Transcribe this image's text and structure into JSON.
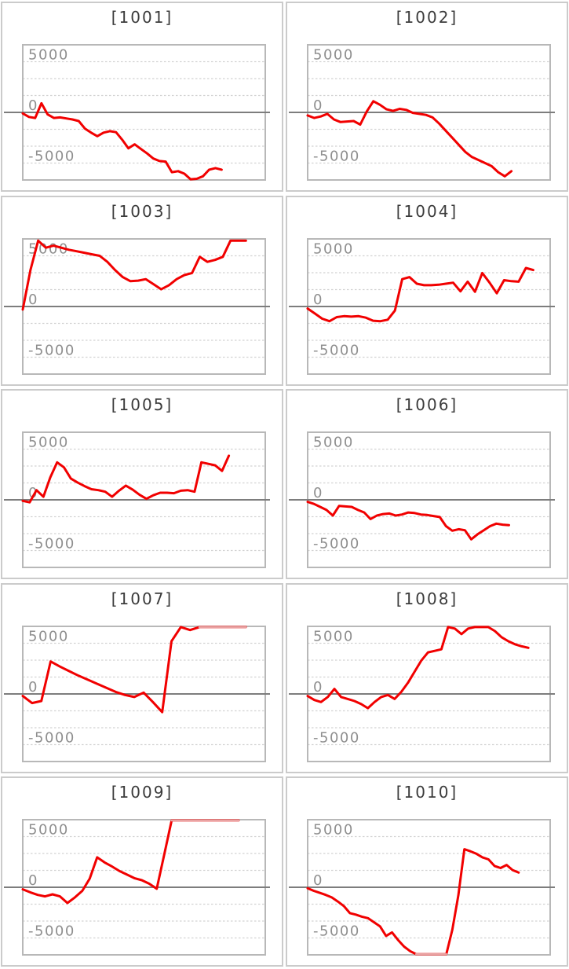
{
  "colors": {
    "background": "#ffffff",
    "line": "#f10000",
    "line_clipped": "#e9a2a2",
    "grid_dashed": "#d2d2d2",
    "zero_line": "#7d7d7d",
    "plot_border": "#b8b8b8",
    "panel_border": "#cbcbcb",
    "tick_label": "#8f8f8f",
    "title": "#3c3c3c"
  },
  "chart_data": {
    "type": "line",
    "legend": "none",
    "grid": "dashed horizontal lines every 1667 units, solid dark line at 0",
    "ylim": [
      -6667,
      6667
    ],
    "y_ticks": [
      5000,
      0,
      -5000
    ],
    "y_tick_labels": [
      "5000",
      "0",
      "-5000"
    ],
    "charts": [
      {
        "title": "[1001]",
        "x_end": 0.82,
        "values": [
          -100,
          -450,
          -550,
          900,
          -200,
          -550,
          -500,
          -600,
          -700,
          -850,
          -1600,
          -2000,
          -2350,
          -2000,
          -1850,
          -1950,
          -2700,
          -3550,
          -3150,
          -3600,
          -4050,
          -4550,
          -4800,
          -4850,
          -5900,
          -5800,
          -6050,
          -6650,
          -6550,
          -6300,
          -5650,
          -5500,
          -5650
        ]
      },
      {
        "title": "[1002]",
        "x_end": 0.84,
        "values": [
          -300,
          -550,
          -400,
          -150,
          -700,
          -950,
          -900,
          -850,
          -1200,
          100,
          1100,
          750,
          300,
          150,
          350,
          250,
          -50,
          -150,
          -250,
          -500,
          -1100,
          -1800,
          -2500,
          -3200,
          -3900,
          -4400,
          -4700,
          -5000,
          -5300,
          -5900,
          -6300,
          -5800
        ]
      },
      {
        "title": "[1003]",
        "x_end": 0.92,
        "values": [
          -300,
          3600,
          6500,
          5800,
          6000,
          5800,
          5600,
          5450,
          5300,
          5150,
          5000,
          4400,
          3600,
          2900,
          2500,
          2550,
          2700,
          2200,
          1700,
          2100,
          2700,
          3100,
          3300,
          4900,
          4400,
          4600,
          4900,
          6500,
          6500,
          6500
        ]
      },
      {
        "title": "[1004]",
        "x_end": 0.93,
        "values": [
          -200,
          -700,
          -1200,
          -1450,
          -1050,
          -950,
          -1000,
          -950,
          -1100,
          -1400,
          -1450,
          -1300,
          -400,
          2700,
          2900,
          2250,
          2100,
          2100,
          2150,
          2250,
          2350,
          1500,
          2450,
          1450,
          3300,
          2350,
          1300,
          2600,
          2500,
          2450,
          3800,
          3600
        ]
      },
      {
        "title": "[1005]",
        "x_end": 0.85,
        "values": [
          -100,
          -250,
          950,
          300,
          2200,
          3700,
          3200,
          2100,
          1700,
          1350,
          1050,
          950,
          800,
          300,
          900,
          1400,
          1000,
          500,
          100,
          450,
          700,
          700,
          650,
          900,
          950,
          800,
          3700,
          3550,
          3400,
          2850,
          4350
        ]
      },
      {
        "title": "[1006]",
        "x_end": 0.83,
        "values": [
          -200,
          -400,
          -700,
          -1000,
          -1550,
          -600,
          -650,
          -700,
          -1000,
          -1250,
          -1900,
          -1550,
          -1400,
          -1350,
          -1550,
          -1450,
          -1250,
          -1300,
          -1450,
          -1500,
          -1600,
          -1700,
          -2600,
          -3050,
          -2900,
          -3000,
          -3900,
          -3400,
          -3000,
          -2600,
          -2350,
          -2450,
          -2500
        ]
      },
      {
        "title": "[1007]",
        "x_end": 0.92,
        "values": [
          -200,
          -900,
          -700,
          3200,
          2700,
          2250,
          1800,
          1400,
          1000,
          600,
          200,
          -100,
          -300,
          130,
          -800,
          -1800,
          5200,
          6700,
          6300,
          6700,
          6700,
          6700,
          6700,
          6700,
          6700
        ]
      },
      {
        "title": "[1008]",
        "x_end": 0.91,
        "values": [
          -200,
          -600,
          -800,
          -300,
          500,
          -300,
          -500,
          -700,
          -1000,
          -1400,
          -800,
          -300,
          -100,
          -500,
          200,
          1100,
          2200,
          3300,
          4100,
          4250,
          4400,
          6600,
          6450,
          5900,
          6450,
          6600,
          6600,
          6600,
          6200,
          5600,
          5200,
          4900,
          4700,
          4550
        ]
      },
      {
        "title": "[1009]",
        "x_end": 0.89,
        "values": [
          -200,
          -500,
          -750,
          -900,
          -700,
          -900,
          -1550,
          -1000,
          -350,
          850,
          2950,
          2450,
          2050,
          1600,
          1250,
          900,
          700,
          350,
          -150,
          3200,
          6700,
          6700,
          6700,
          6700,
          6700,
          6700,
          6700,
          6700,
          6700,
          6700
        ]
      },
      {
        "title": "[1010]",
        "x_end": 0.87,
        "values": [
          -100,
          -350,
          -550,
          -750,
          -1000,
          -1400,
          -1850,
          -2550,
          -2700,
          -2900,
          -3050,
          -3450,
          -3850,
          -4800,
          -4450,
          -5200,
          -5850,
          -6300,
          -6700,
          -6700,
          -6700,
          -6700,
          -6700,
          -6700,
          -4200,
          -800,
          3750,
          3550,
          3300,
          2950,
          2750,
          2100,
          1900,
          2200,
          1700,
          1450
        ]
      }
    ]
  }
}
